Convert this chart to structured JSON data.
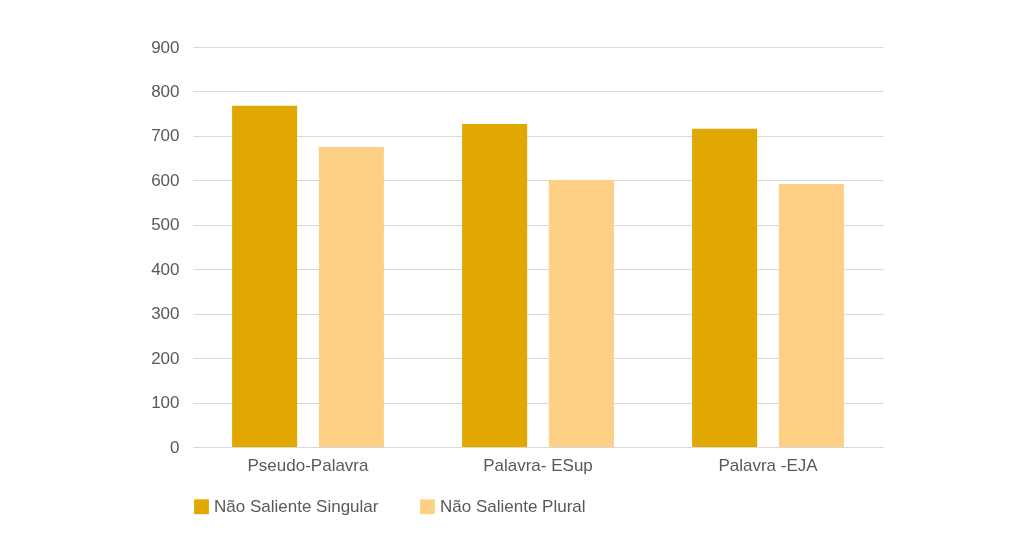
{
  "chart_data": {
    "type": "bar",
    "categories": [
      "Pseudo-Palavra",
      "Palavra- ESup",
      "Palavra -EJA"
    ],
    "series": [
      {
        "name": "Não Saliente Singular",
        "color": "#e0a800",
        "values": [
          768,
          727,
          716
        ]
      },
      {
        "name": "Não Saliente Plural",
        "color": "#fed086",
        "values": [
          675,
          601,
          592
        ]
      }
    ],
    "ylim": [
      0,
      900
    ],
    "yticks": [
      0,
      100,
      200,
      300,
      400,
      500,
      600,
      700,
      800,
      900
    ],
    "grid": "y",
    "legend": "bottom"
  }
}
